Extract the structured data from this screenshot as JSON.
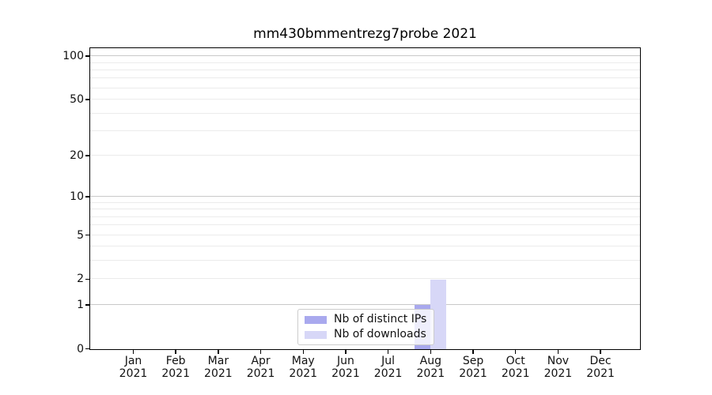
{
  "chart_data": {
    "type": "bar",
    "title": "mm430bmmentrezg7probe 2021",
    "x_year_label": "2021",
    "categories": [
      "Jan",
      "Feb",
      "Mar",
      "Apr",
      "May",
      "Jun",
      "Jul",
      "Aug",
      "Sep",
      "Oct",
      "Nov",
      "Dec"
    ],
    "series": [
      {
        "name": "Nb of distinct IPs",
        "color": "#a9a9ee",
        "values": [
          0,
          0,
          0,
          0,
          0,
          0,
          0,
          1,
          0,
          0,
          0,
          0
        ]
      },
      {
        "name": "Nb of downloads",
        "color": "#d7d7f7",
        "values": [
          0,
          0,
          0,
          0,
          0,
          0,
          0,
          2,
          0,
          0,
          0,
          0
        ]
      }
    ],
    "yscale": "log1p",
    "ylim": [
      0,
      113
    ],
    "yticks": [
      0,
      1,
      2,
      5,
      10,
      20,
      50,
      100
    ],
    "major_gridlines": [
      1,
      10,
      100
    ],
    "minor_gridlines": [
      2,
      3,
      4,
      5,
      6,
      7,
      8,
      9,
      20,
      30,
      40,
      50,
      60,
      70,
      80,
      90
    ],
    "grid": "on",
    "legend_position": "lower center inside plot"
  },
  "legend": {
    "items": [
      {
        "label": "Nb of distinct IPs",
        "color": "#a9a9ee"
      },
      {
        "label": "Nb of downloads",
        "color": "#d7d7f7"
      }
    ]
  },
  "colors": {
    "background": "#ffffff",
    "spine": "#000000",
    "major_grid": "#c9c9c9",
    "minor_grid": "#ebebeb",
    "text": "#111111"
  }
}
